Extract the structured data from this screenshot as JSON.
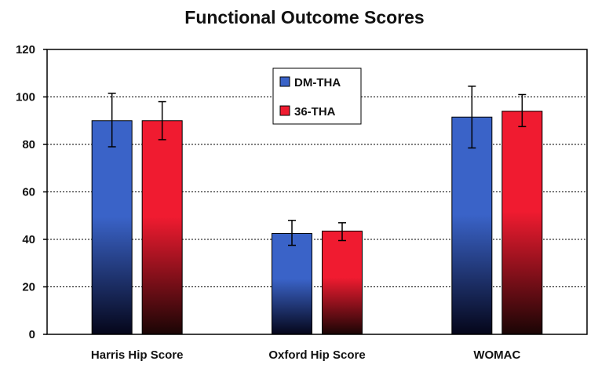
{
  "chart_data": {
    "type": "bar",
    "title": "Functional Outcome Scores",
    "xlabel": "",
    "ylabel": "",
    "ylim": [
      0,
      120
    ],
    "yticks": [
      0,
      20,
      40,
      60,
      80,
      100,
      120
    ],
    "grid": "horizontal dashed",
    "legend_position": "top-center",
    "categories": [
      "Harris Hip Score",
      "Oxford Hip Score",
      "WOMAC"
    ],
    "series": [
      {
        "name": "DM-THA",
        "color_top": "#3a63c8",
        "color_bottom": "#05061a",
        "values": [
          90,
          42.5,
          91.5
        ],
        "error_low": [
          79,
          37.5,
          78.5
        ],
        "error_high": [
          101.5,
          48,
          104.5
        ]
      },
      {
        "name": "36-THA",
        "color_top": "#f01b30",
        "color_bottom": "#1a0505",
        "values": [
          90,
          43.5,
          94
        ],
        "error_low": [
          82,
          39.5,
          87.5
        ],
        "error_high": [
          98,
          47,
          101
        ]
      }
    ]
  }
}
